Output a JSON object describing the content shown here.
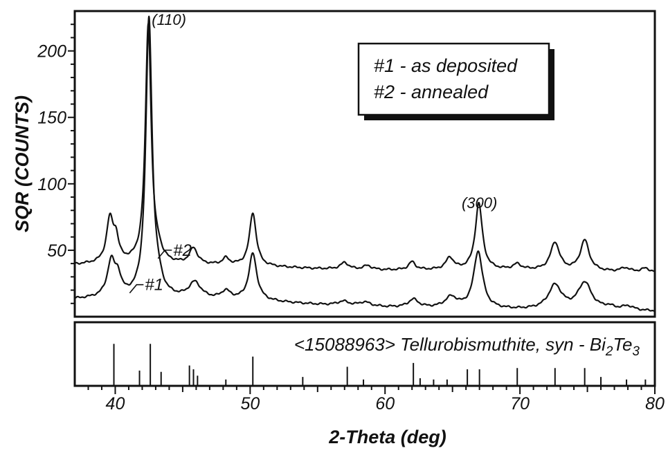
{
  "chart_data": {
    "type": "line",
    "xlabel": "2-Theta (deg)",
    "ylabel": "SQR (COUNTS)",
    "xlim": [
      37,
      80
    ],
    "ylim": [
      0,
      230
    ],
    "x_ticks": [
      40,
      50,
      60,
      70,
      80
    ],
    "y_ticks": [
      50,
      100,
      150,
      200
    ],
    "legend": {
      "position": "top-right",
      "entries": [
        "#1 - as deposited",
        "#2 - annealed"
      ]
    },
    "peak_labels": [
      {
        "text": "(110)",
        "x": 42.4,
        "y": 230
      },
      {
        "text": "(300)",
        "x": 67.0,
        "y": 92
      }
    ],
    "series": [
      {
        "name": "#1",
        "tag": "#1",
        "tag_at": [
          42.2,
          22
        ],
        "peaks": [
          {
            "x": 39.7,
            "h": 26,
            "w": 0.35
          },
          {
            "x": 40.2,
            "h": 13,
            "w": 0.28
          },
          {
            "x": 42.5,
            "h": 210,
            "w": 0.28
          },
          {
            "x": 43.2,
            "h": 7,
            "w": 0.35
          },
          {
            "x": 45.9,
            "h": 12,
            "w": 0.55
          },
          {
            "x": 48.2,
            "h": 6,
            "w": 0.4
          },
          {
            "x": 50.2,
            "h": 35,
            "w": 0.35
          },
          {
            "x": 56.9,
            "h": 3,
            "w": 0.5
          },
          {
            "x": 58.5,
            "h": 3,
            "w": 0.5
          },
          {
            "x": 62.1,
            "h": 6,
            "w": 0.45
          },
          {
            "x": 64.9,
            "h": 8,
            "w": 0.55
          },
          {
            "x": 66.9,
            "h": 43,
            "w": 0.4
          },
          {
            "x": 72.6,
            "h": 18,
            "w": 0.6
          },
          {
            "x": 74.8,
            "h": 20,
            "w": 0.6
          },
          {
            "x": 76.6,
            "h": 2,
            "w": 0.5
          },
          {
            "x": 78.0,
            "h": 3,
            "w": 0.5
          }
        ],
        "baseline": [
          [
            37,
            13
          ],
          [
            40,
            14
          ],
          [
            45,
            13
          ],
          [
            50,
            12
          ],
          [
            55,
            9
          ],
          [
            60,
            7
          ],
          [
            65,
            6
          ],
          [
            70,
            5
          ],
          [
            75,
            5
          ],
          [
            80,
            4
          ]
        ]
      },
      {
        "name": "#2",
        "tag": "#2",
        "tag_at": [
          44.3,
          48
        ],
        "peaks": [
          {
            "x": 39.6,
            "h": 32,
            "w": 0.3
          },
          {
            "x": 40.05,
            "h": 16,
            "w": 0.25
          },
          {
            "x": 42.45,
            "h": 180,
            "w": 0.26
          },
          {
            "x": 43.2,
            "h": 6,
            "w": 0.3
          },
          {
            "x": 45.8,
            "h": 12,
            "w": 0.35
          },
          {
            "x": 48.2,
            "h": 5,
            "w": 0.3
          },
          {
            "x": 50.2,
            "h": 40,
            "w": 0.3
          },
          {
            "x": 57.0,
            "h": 5,
            "w": 0.35
          },
          {
            "x": 58.7,
            "h": 3,
            "w": 0.35
          },
          {
            "x": 62.0,
            "h": 6,
            "w": 0.3
          },
          {
            "x": 64.8,
            "h": 9,
            "w": 0.35
          },
          {
            "x": 66.95,
            "h": 50,
            "w": 0.32
          },
          {
            "x": 69.8,
            "h": 4,
            "w": 0.35
          },
          {
            "x": 72.6,
            "h": 21,
            "w": 0.4
          },
          {
            "x": 74.8,
            "h": 23,
            "w": 0.4
          },
          {
            "x": 77.8,
            "h": 3,
            "w": 0.4
          },
          {
            "x": 79.3,
            "h": 3,
            "w": 0.4
          }
        ],
        "baseline": [
          [
            37,
            39
          ],
          [
            40,
            40
          ],
          [
            45,
            39
          ],
          [
            50,
            38
          ],
          [
            55,
            36
          ],
          [
            60,
            35
          ],
          [
            65,
            35
          ],
          [
            70,
            35
          ],
          [
            75,
            34
          ],
          [
            80,
            33
          ]
        ]
      }
    ],
    "reference_pattern": {
      "title_prefix": "<15088963> Tellurobismuthite, syn - Bi",
      "sub1": "2",
      "title_mid": "Te",
      "sub2": "3",
      "lines": [
        {
          "x": 39.9,
          "h": 0.66
        },
        {
          "x": 41.8,
          "h": 0.24
        },
        {
          "x": 42.6,
          "h": 0.66
        },
        {
          "x": 43.4,
          "h": 0.22
        },
        {
          "x": 45.5,
          "h": 0.32
        },
        {
          "x": 45.8,
          "h": 0.26
        },
        {
          "x": 46.1,
          "h": 0.16
        },
        {
          "x": 48.2,
          "h": 0.1
        },
        {
          "x": 50.2,
          "h": 0.46
        },
        {
          "x": 53.9,
          "h": 0.14
        },
        {
          "x": 57.2,
          "h": 0.3
        },
        {
          "x": 58.4,
          "h": 0.1
        },
        {
          "x": 62.1,
          "h": 0.36
        },
        {
          "x": 62.6,
          "h": 0.12
        },
        {
          "x": 63.6,
          "h": 0.1
        },
        {
          "x": 64.6,
          "h": 0.1
        },
        {
          "x": 66.1,
          "h": 0.26
        },
        {
          "x": 67.0,
          "h": 0.26
        },
        {
          "x": 69.8,
          "h": 0.28
        },
        {
          "x": 72.6,
          "h": 0.28
        },
        {
          "x": 74.8,
          "h": 0.28
        },
        {
          "x": 76.0,
          "h": 0.14
        },
        {
          "x": 77.9,
          "h": 0.1
        },
        {
          "x": 79.3,
          "h": 0.1
        }
      ]
    }
  }
}
